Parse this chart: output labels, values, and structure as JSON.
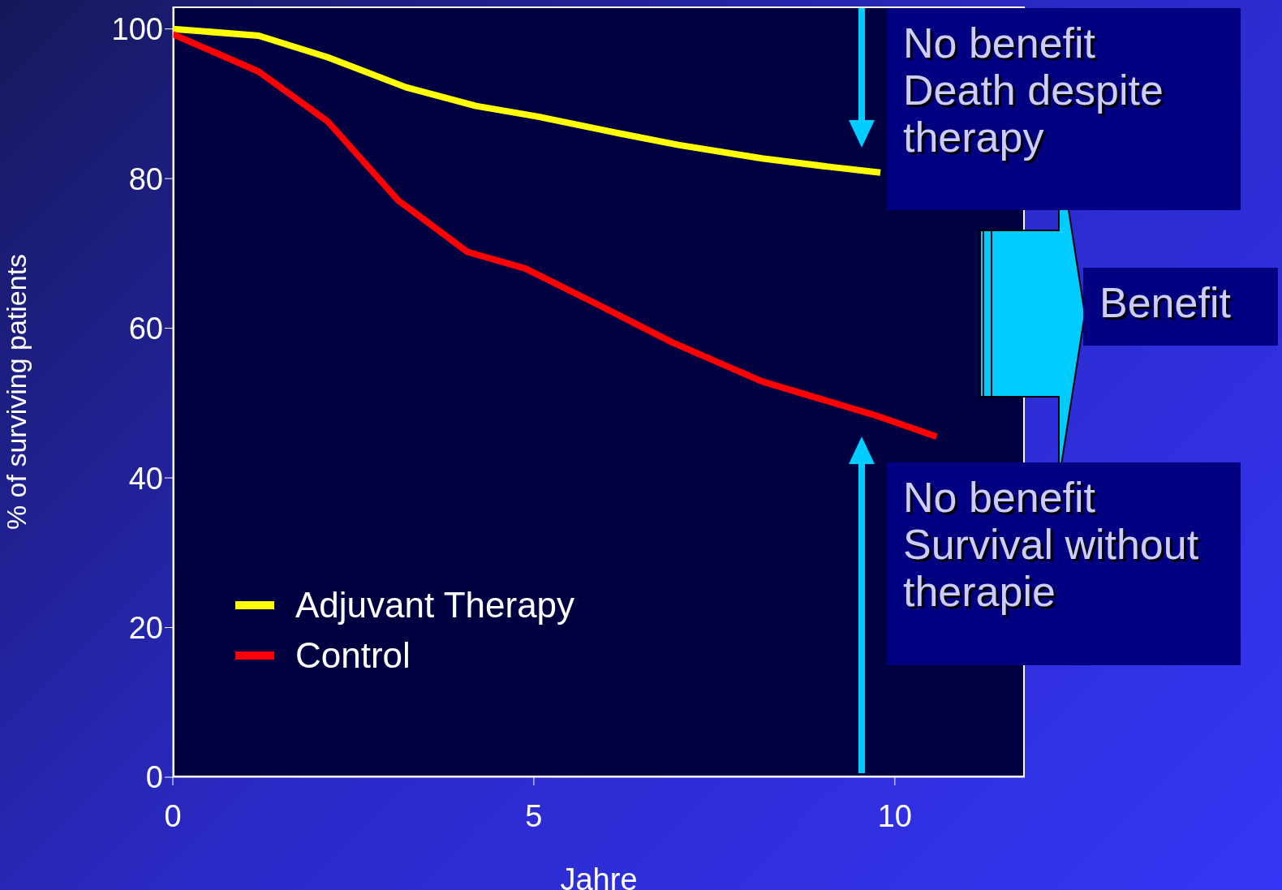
{
  "chart_data": {
    "type": "line",
    "xlabel": "Jahre",
    "ylabel": "% of surviving patients",
    "xlim": [
      0,
      11.8
    ],
    "xticks": [
      0,
      5,
      10
    ],
    "ylim": [
      0,
      103
    ],
    "yticks": [
      0,
      20,
      40,
      60,
      80,
      100
    ],
    "grid": false,
    "legend": "bottom left",
    "marker": "none",
    "line_style": "solid",
    "series": [
      {
        "name": "Adjuvant Therapy",
        "color": "#ffff00",
        "x": [
          0,
          1.19,
          2.15,
          3.23,
          4.2,
          5.05,
          6.1,
          7.0,
          8.16,
          9.07,
          9.8
        ],
        "values": [
          100,
          99.1,
          96.2,
          92.2,
          89.7,
          88.3,
          86.2,
          84.5,
          82.7,
          81.6,
          80.8
        ]
      },
      {
        "name": "Control",
        "color": "#ff0000",
        "x": [
          0,
          1.19,
          2.15,
          3.12,
          4.08,
          4.88,
          5.9,
          6.92,
          8.16,
          9.75,
          10.58
        ],
        "values": [
          99.3,
          94.3,
          87.6,
          77.1,
          70.2,
          68.0,
          63.1,
          58.1,
          52.9,
          48.3,
          45.5
        ]
      }
    ],
    "annotations": [
      "No benefit\nDeath despite\ntherapy",
      "Benefit",
      "No benefit\nSurvival without\ntherapie"
    ]
  }
}
